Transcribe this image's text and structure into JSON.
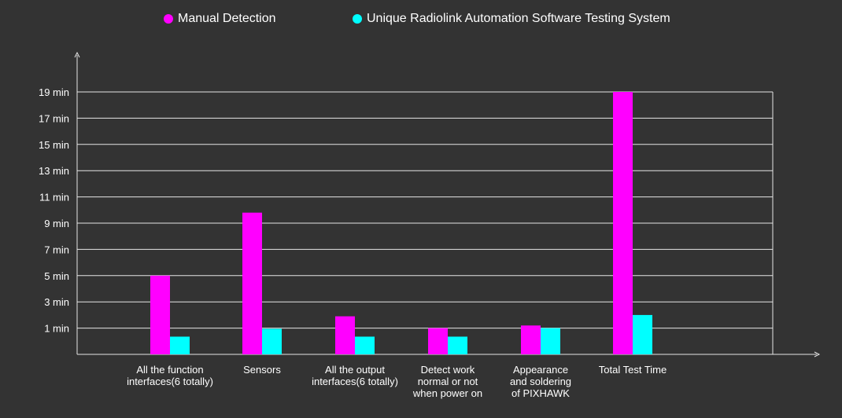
{
  "chart_data": {
    "type": "bar",
    "categories": [
      [
        "All the function",
        "interfaces(6 totally)"
      ],
      [
        "Sensors"
      ],
      [
        "All the output",
        "interfaces(6 totally)"
      ],
      [
        "Detect work",
        "normal or not",
        "when power on"
      ],
      [
        "Appearance",
        "and soldering",
        "of  PIXHAWK"
      ],
      [
        "Total Test Time"
      ]
    ],
    "series": [
      {
        "name": "Manual Detection",
        "color": "#ff00ff",
        "values": [
          5.0,
          9.8,
          1.9,
          1.0,
          1.2,
          19.0
        ]
      },
      {
        "name": "Unique Radiolink Automation Software Testing System",
        "color": "#00ffff",
        "values": [
          0.35,
          0.95,
          0.35,
          0.35,
          1.0,
          2.0
        ]
      }
    ],
    "y_ticks": [
      "1 min",
      "3 min",
      "5 min",
      "7 min",
      "9 min",
      "11 min",
      "13 min",
      "15 min",
      "17 min",
      "19 min"
    ],
    "y_tick_values": [
      1,
      3,
      5,
      7,
      9,
      11,
      13,
      15,
      17,
      19
    ],
    "ylim": [
      -1,
      19
    ],
    "grid": true,
    "legend": "top"
  }
}
